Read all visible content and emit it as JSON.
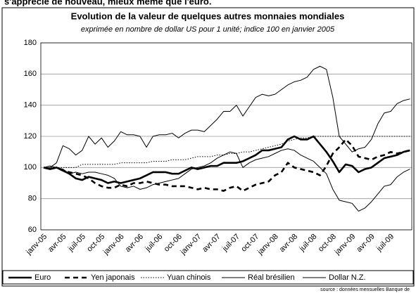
{
  "text_above": "s'apprécie de nouveau, mieux même que l'euro.",
  "chart_data": {
    "type": "line",
    "title": "Evolution de la valeur de quelques autres monnaies mondiales",
    "subtitle": "exprimée en nombre de dollar US pour 1 unité; indice 100 en janvier 2005",
    "source": "source : données mensuelles Banque de",
    "categories": [
      "janv-05",
      null,
      null,
      "avr-05",
      null,
      null,
      "juil-05",
      null,
      null,
      "oct-05",
      null,
      null,
      "janv-06",
      null,
      null,
      "avr-06",
      null,
      null,
      "juil-06",
      null,
      null,
      "oct-06",
      null,
      null,
      "janv-07",
      null,
      null,
      "avr-07",
      null,
      null,
      "juil-07",
      null,
      null,
      "oct-07",
      null,
      null,
      "janv-08",
      null,
      null,
      "avr-08",
      null,
      null,
      "juil-08",
      null,
      null,
      "oct-08",
      null,
      null,
      "janv-09",
      null,
      null,
      "avr-09",
      null,
      null,
      "juil-09",
      null,
      null,
      null
    ],
    "ylim": [
      60,
      180
    ],
    "yticks": [
      60,
      80,
      100,
      120,
      140,
      160,
      180
    ],
    "grid": true,
    "series": [
      {
        "name": "Euro",
        "color": "#000000",
        "style": "thick",
        "values": [
          100,
          99,
          100,
          98,
          96,
          93,
          92,
          94,
          93,
          92,
          90,
          91,
          90,
          91,
          92,
          93,
          95,
          97,
          97,
          97,
          96,
          96,
          98,
          100,
          99,
          100,
          101,
          101,
          103,
          103,
          103,
          104,
          106,
          108,
          111,
          111,
          112,
          113,
          118,
          120,
          118,
          118,
          120,
          115,
          110,
          104,
          97,
          102,
          101,
          97,
          99,
          100,
          103,
          106,
          107,
          108,
          110,
          111
        ]
      },
      {
        "name": "Yen japonais",
        "color": "#000000",
        "style": "dashed",
        "values": [
          100,
          99,
          100,
          98,
          97,
          96,
          95,
          93,
          90,
          88,
          87,
          87,
          89,
          88,
          90,
          90,
          91,
          90,
          89,
          89,
          88,
          88,
          88,
          87,
          86,
          87,
          86,
          86,
          85,
          87,
          88,
          85,
          87,
          89,
          90,
          91,
          95,
          97,
          103,
          100,
          99,
          98,
          97,
          95,
          101,
          109,
          113,
          118,
          114,
          107,
          106,
          105,
          107,
          108,
          110,
          109,
          110,
          111
        ]
      },
      {
        "name": "Yuan chinois",
        "color": "#000000",
        "style": "dotted",
        "values": [
          100,
          100,
          100,
          100,
          100,
          100,
          102,
          102,
          102,
          102,
          102,
          102,
          103,
          103,
          103,
          103,
          103,
          104,
          104,
          104,
          105,
          105,
          105,
          106,
          107,
          107,
          107,
          108,
          108,
          109,
          109,
          110,
          110,
          111,
          112,
          113,
          114,
          115,
          117,
          118,
          119,
          119,
          120,
          120,
          120,
          120,
          120,
          120,
          120,
          120,
          120,
          120,
          120,
          120,
          120,
          120,
          120,
          120
        ]
      },
      {
        "name": "Réal brésilien",
        "color": "#000000",
        "style": "thin",
        "values": [
          100,
          100,
          103,
          114,
          112,
          108,
          111,
          120,
          115,
          119,
          113,
          117,
          123,
          121,
          121,
          120,
          113,
          120,
          121,
          121,
          122,
          119,
          122,
          124,
          124,
          123,
          127,
          131,
          136,
          136,
          140,
          133,
          139,
          145,
          147,
          146,
          147,
          150,
          153,
          155,
          156,
          158,
          163,
          165,
          163,
          145,
          120,
          115,
          110,
          112,
          113,
          118,
          128,
          135,
          136,
          141,
          143,
          144
        ]
      },
      {
        "name": "Dollar N.Z.",
        "color": "#000000",
        "style": "thin",
        "values": [
          100,
          101,
          100,
          99,
          96,
          97,
          96,
          97,
          97,
          96,
          95,
          93,
          88,
          87,
          88,
          86,
          87,
          89,
          90,
          91,
          92,
          93,
          96,
          99,
          100,
          101,
          103,
          106,
          108,
          110,
          109,
          100,
          103,
          105,
          106,
          107,
          109,
          111,
          112,
          111,
          108,
          106,
          104,
          100,
          96,
          86,
          79,
          78,
          77,
          72,
          74,
          78,
          83,
          88,
          89,
          94,
          97,
          99
        ]
      }
    ]
  }
}
